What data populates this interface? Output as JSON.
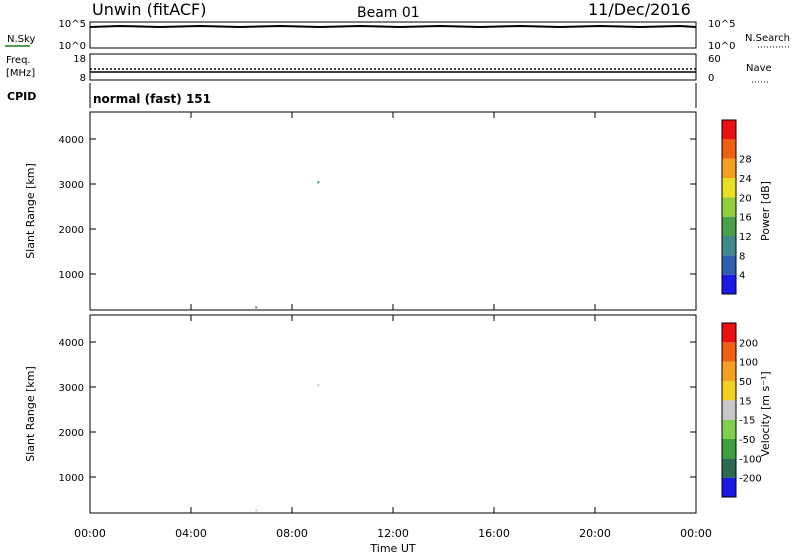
{
  "header": {
    "station": "Unwin (fitACF)",
    "beam": "Beam 01",
    "date": "11/Dec/2016"
  },
  "sky_panel": {
    "left_label": "N.Sky",
    "left_ticks": [
      "10^5",
      "10^0"
    ],
    "right_ticks": [
      "10^5",
      "10^0"
    ],
    "right_label": "N.Search"
  },
  "freq_panel": {
    "left_label_1": "Freq.",
    "left_label_2": "[MHz]",
    "left_ticks": [
      "18",
      "8"
    ],
    "right_ticks": [
      "60",
      "0"
    ],
    "right_label": "Nave"
  },
  "cpid": {
    "label": "CPID",
    "value": "normal (fast) 151"
  },
  "chart_data": [
    {
      "type": "heatmap",
      "quantity": "Power",
      "ylabel": "Slant Range [km]",
      "xlabel": "",
      "ylim": [
        200,
        4600
      ],
      "yticks": [
        "1000",
        "2000",
        "3000",
        "4000"
      ],
      "colorbar_label": "Power [dB]",
      "colorbar_ticks": [
        "4",
        "8",
        "12",
        "16",
        "20",
        "24",
        "28"
      ],
      "colorbar_colors": [
        "#1a1ae6",
        "#2e5fb0",
        "#3f8a8a",
        "#4aa04a",
        "#8fcf3a",
        "#e8e020",
        "#f5a020",
        "#f06010",
        "#ee1010"
      ]
    },
    {
      "type": "heatmap",
      "quantity": "Velocity",
      "ylabel": "Slant Range [km]",
      "xlabel": "Time UT",
      "ylim": [
        200,
        4600
      ],
      "yticks": [
        "1000",
        "2000",
        "3000",
        "4000"
      ],
      "xticks": [
        "00:00",
        "04:00",
        "08:00",
        "12:00",
        "16:00",
        "20:00",
        "00:00"
      ],
      "colorbar_label": "Velocity [m s⁻¹]",
      "colorbar_ticks": [
        "200",
        "100",
        "50",
        "15",
        "-15",
        "-50",
        "-100",
        "-200"
      ],
      "colorbar_colors": [
        "#1a1ae6",
        "#2a6a50",
        "#3aa040",
        "#80d050",
        "#c8c8c8",
        "#f0d020",
        "#f5a020",
        "#f06010",
        "#ee1010"
      ]
    }
  ]
}
